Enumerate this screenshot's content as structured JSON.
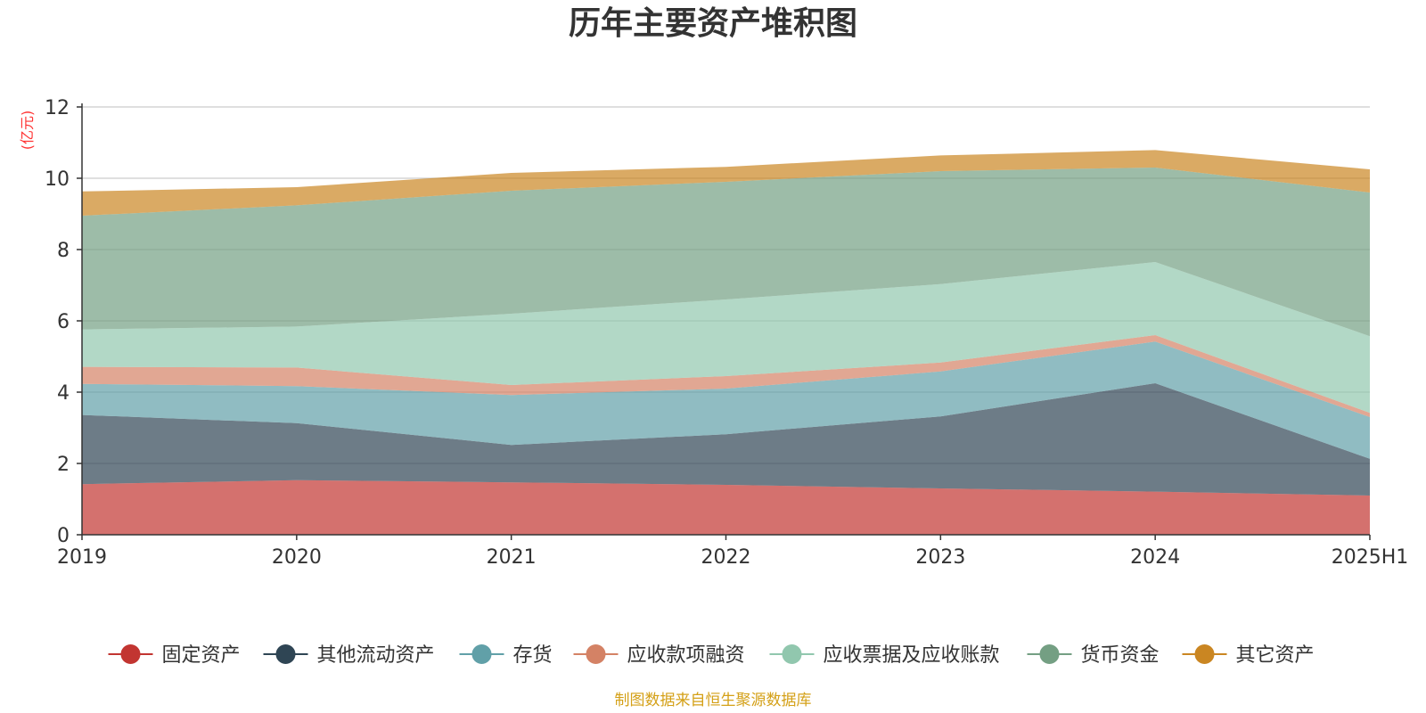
{
  "chart_data": {
    "type": "area",
    "stacked": true,
    "title": "历年主要资产堆积图",
    "ylabel": "(亿元)",
    "xlabel": "",
    "categories": [
      "2019",
      "2020",
      "2021",
      "2022",
      "2023",
      "2024",
      "2025H1"
    ],
    "ylim": [
      0,
      12
    ],
    "yticks": [
      0,
      2,
      4,
      6,
      8,
      10,
      12
    ],
    "grid": true,
    "legend_position": "bottom",
    "series": [
      {
        "name": "固定资产",
        "color": "#c23531",
        "values": [
          1.42,
          1.53,
          1.47,
          1.4,
          1.3,
          1.21,
          1.1
        ]
      },
      {
        "name": "其他流动资产",
        "color": "#2f4554",
        "values": [
          1.94,
          1.6,
          1.05,
          1.42,
          2.02,
          3.04,
          1.03
        ]
      },
      {
        "name": "存货",
        "color": "#61a0a8",
        "values": [
          0.87,
          1.04,
          1.4,
          1.28,
          1.26,
          1.17,
          1.17
        ]
      },
      {
        "name": "应收款项融资",
        "color": "#d48265",
        "values": [
          0.48,
          0.52,
          0.28,
          0.35,
          0.25,
          0.18,
          0.12
        ]
      },
      {
        "name": "应收票据及应收账款",
        "color": "#91c7ae",
        "values": [
          1.05,
          1.15,
          2.0,
          2.15,
          2.2,
          2.05,
          2.15
        ]
      },
      {
        "name": "货币资金",
        "color": "#749f83",
        "values": [
          3.19,
          3.4,
          3.45,
          3.3,
          3.17,
          2.65,
          4.03
        ]
      },
      {
        "name": "其它资产",
        "color": "#ca8622",
        "values": [
          0.68,
          0.51,
          0.5,
          0.42,
          0.44,
          0.49,
          0.65
        ]
      }
    ]
  },
  "footer": {
    "source": "制图数据来自恒生聚源数据库"
  }
}
